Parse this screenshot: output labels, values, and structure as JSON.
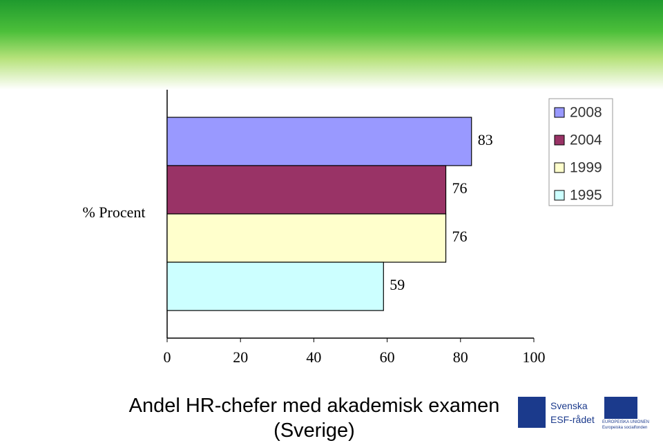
{
  "chart_data": {
    "type": "bar",
    "orientation": "horizontal",
    "title": "Andel HR-chefer med akademisk examen (Sverige)",
    "y_label": "% Procent",
    "categories": [
      null
    ],
    "series": [
      {
        "name": "2008",
        "color": "#9999ff",
        "values": [
          83
        ]
      },
      {
        "name": "2004",
        "color": "#993366",
        "values": [
          76
        ]
      },
      {
        "name": "1999",
        "color": "#ffffcc",
        "values": [
          76
        ]
      },
      {
        "name": "1995",
        "color": "#ccffff",
        "values": [
          59
        ]
      }
    ],
    "xlim": [
      0,
      100
    ],
    "xticks": [
      0,
      20,
      40,
      60,
      80,
      100
    ],
    "grid": false,
    "legend": "upper right"
  },
  "logos": {
    "esf": [
      "Svenska",
      "ESF-rådet"
    ],
    "eu": [
      "EUROPEISKA UNIONEN",
      "Europeiska socialfonden"
    ]
  }
}
